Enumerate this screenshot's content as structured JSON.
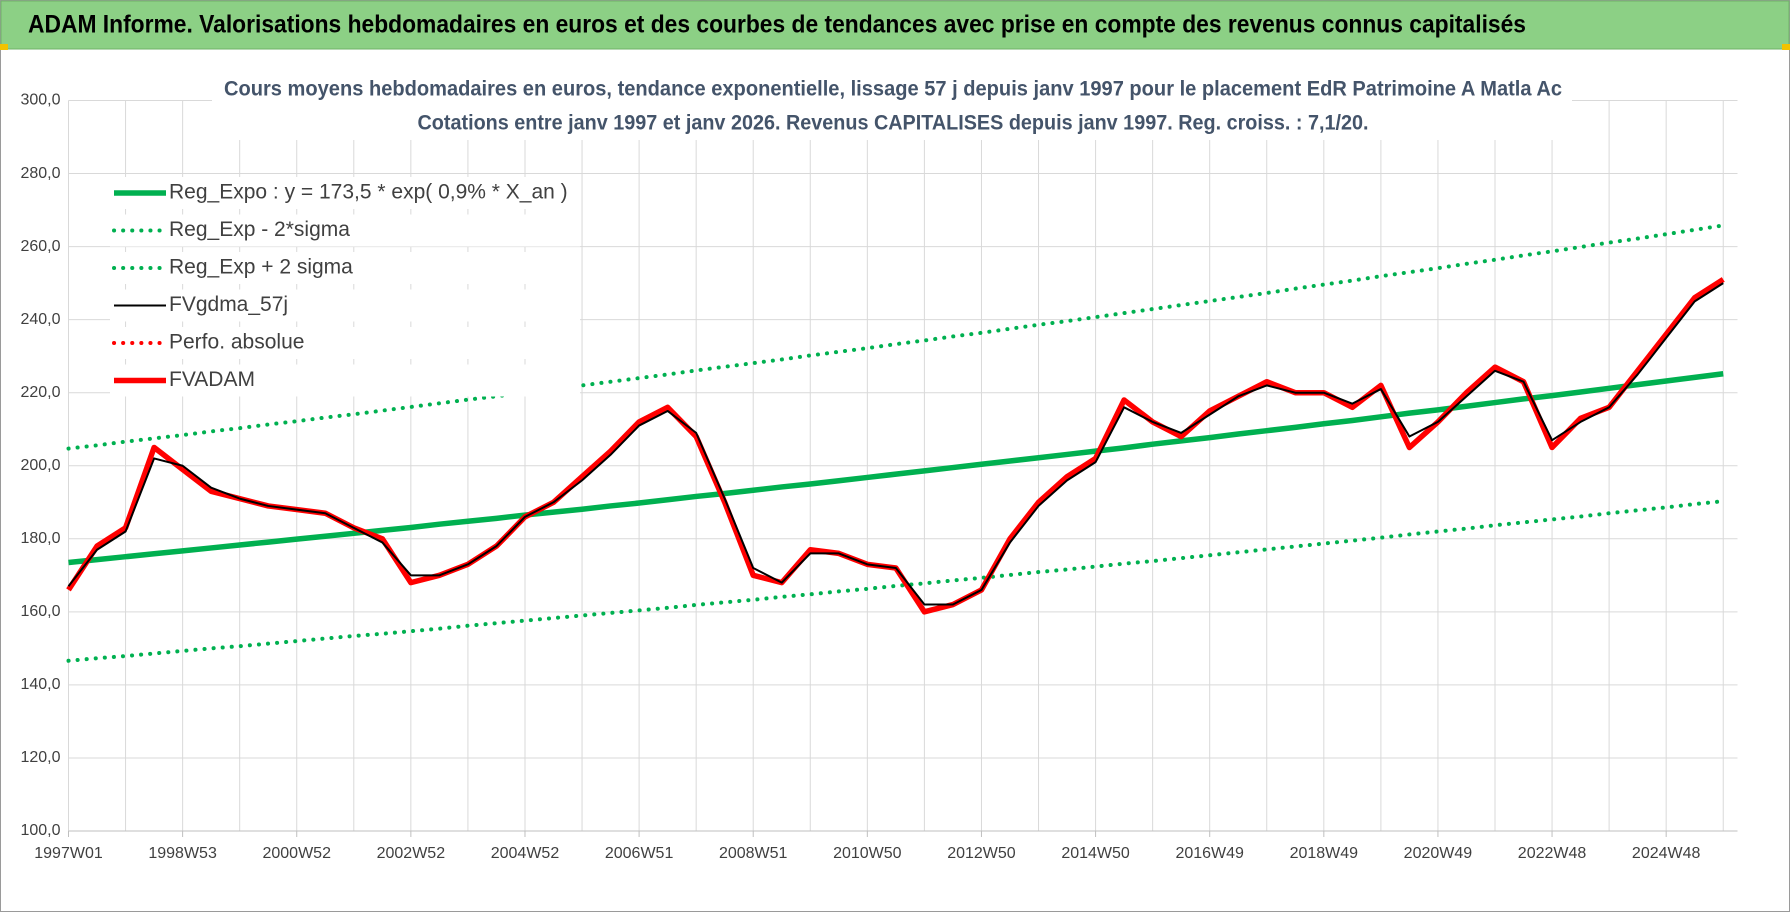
{
  "header": {
    "title": "ADAM Informe. Valorisations hebdomadaires en euros et des courbes de tendances avec prise en compte des revenus connus capitalisés"
  },
  "chart_data": {
    "type": "line",
    "title": "Cours moyens hebdomadaires en euros, tendance exponentielle, lissage 57 j depuis janv 1997 pour le placement EdR Patrimoine A Matla Ac",
    "subtitle": "Cotations entre janv 1997 et janv 2026. Revenus CAPITALISES depuis janv 1997. Reg. croiss. : 7,1/20.",
    "categories": [
      "1997W01",
      null,
      null,
      null,
      "1998W53",
      null,
      null,
      null,
      "2000W52",
      null,
      null,
      null,
      "2002W52",
      null,
      null,
      null,
      "2004W52",
      null,
      null,
      null,
      "2006W51",
      null,
      null,
      null,
      "2008W51",
      null,
      null,
      null,
      "2010W50",
      null,
      null,
      null,
      "2012W50",
      null,
      null,
      null,
      "2014W50",
      null,
      null,
      null,
      "2016W49",
      null,
      null,
      null,
      "2018W49",
      null,
      null,
      null,
      "2020W49",
      null,
      null,
      null,
      "2022W48",
      null,
      null,
      null,
      "2024W48",
      null,
      null
    ],
    "ylim": [
      100,
      300
    ],
    "yticks": [
      {
        "value": 100,
        "label": "100,0"
      },
      {
        "value": 120,
        "label": "120,0"
      },
      {
        "value": 140,
        "label": "140,0"
      },
      {
        "value": 160,
        "label": "160,0"
      },
      {
        "value": 180,
        "label": "180,0"
      },
      {
        "value": 200,
        "label": "200,0"
      },
      {
        "value": 220,
        "label": "220,0"
      },
      {
        "value": 240,
        "label": "240,0"
      },
      {
        "value": 260,
        "label": "260,0"
      },
      {
        "value": 280,
        "label": "280,0"
      },
      {
        "value": 300,
        "label": "300,0"
      }
    ],
    "grid": true,
    "legend": "upper left",
    "series": [
      {
        "name": "Reg_Expo : y = 173,5 * exp( 0,9% *  X_an )",
        "color": "#00b050",
        "style": "thick",
        "values": [
          173.5,
          174.3,
          175.1,
          175.9,
          176.7,
          177.5,
          178.3,
          179.1,
          179.9,
          180.7,
          181.5,
          182.3,
          183.1,
          184.0,
          184.8,
          185.6,
          186.5,
          187.3,
          188.1,
          189.0,
          189.8,
          190.7,
          191.6,
          192.4,
          193.3,
          194.2,
          195.0,
          195.9,
          196.8,
          197.7,
          198.6,
          199.5,
          200.4,
          201.3,
          202.2,
          203.1,
          204.0,
          204.9,
          205.9,
          206.8,
          207.7,
          208.7,
          209.6,
          210.5,
          211.5,
          212.4,
          213.4,
          214.4,
          215.3,
          216.3,
          217.3,
          218.3,
          219.2,
          220.2,
          221.2,
          222.2,
          223.2,
          224.2,
          225.2
        ]
      },
      {
        "name": "Reg_Exp - 2*sigma",
        "color": "#00b050",
        "style": "dotted",
        "values": [
          146.6,
          147.3,
          147.9,
          148.6,
          149.3,
          150.0,
          150.6,
          151.3,
          152.0,
          152.7,
          153.4,
          154.0,
          154.7,
          155.4,
          156.2,
          156.9,
          157.6,
          158.3,
          159.0,
          159.7,
          160.4,
          161.1,
          161.9,
          162.6,
          163.3,
          164.1,
          164.8,
          165.6,
          166.3,
          167.1,
          167.8,
          168.6,
          169.3,
          170.1,
          170.9,
          171.6,
          172.4,
          173.2,
          173.9,
          174.7,
          175.5,
          176.3,
          177.1,
          177.9,
          178.7,
          179.5,
          180.3,
          181.2,
          182.0,
          182.8,
          183.7,
          184.5,
          185.3,
          186.1,
          187.0,
          187.8,
          188.6,
          189.5,
          190.3
        ]
      },
      {
        "name": "Reg_Exp + 2 sigma",
        "color": "#00b050",
        "style": "dotted",
        "values": [
          204.7,
          205.6,
          206.6,
          207.5,
          208.4,
          209.4,
          210.3,
          211.3,
          212.2,
          213.2,
          214.1,
          215.1,
          216.1,
          217.1,
          218.1,
          219.0,
          220.0,
          221.0,
          222.0,
          223.0,
          224.0,
          225.0,
          226.1,
          227.1,
          228.1,
          229.1,
          230.2,
          231.2,
          232.2,
          233.3,
          234.3,
          235.4,
          236.4,
          237.5,
          238.6,
          239.6,
          240.7,
          241.8,
          242.9,
          244.0,
          245.1,
          246.2,
          247.3,
          248.5,
          249.6,
          250.7,
          251.9,
          253.0,
          254.1,
          255.3,
          256.4,
          257.6,
          258.7,
          259.9,
          261.1,
          262.2,
          263.4,
          264.6,
          265.8
        ]
      },
      {
        "name": "FVgdma_57j",
        "color": "#000000",
        "style": "thin",
        "values": [
          167,
          177,
          182,
          202,
          200,
          194,
          191,
          189,
          188,
          187,
          183,
          179,
          170,
          170,
          173,
          178,
          186,
          190,
          196,
          203,
          211,
          215,
          209,
          191,
          172,
          168,
          176,
          176,
          173,
          172,
          162,
          162,
          166,
          179,
          189,
          196,
          201,
          216,
          212,
          209,
          214,
          219,
          222,
          220,
          220,
          217,
          221,
          208,
          212,
          219,
          226,
          223,
          207,
          212,
          216,
          225,
          235,
          245,
          250
        ]
      },
      {
        "name": "Perfo. absolue",
        "color": "#ff0000",
        "style": "dotted",
        "values": [
          null,
          null,
          null,
          null,
          null,
          null,
          null,
          null,
          null,
          null,
          null,
          null,
          null,
          null,
          null,
          null,
          null,
          null,
          null,
          null,
          null,
          null,
          null,
          null,
          null,
          null,
          null,
          null,
          null,
          null,
          null,
          null,
          null,
          null,
          null,
          null,
          null,
          null,
          null,
          null,
          null,
          null,
          null,
          null,
          null,
          null,
          null,
          null,
          null,
          null,
          null,
          null,
          null,
          null,
          null,
          null,
          null,
          null,
          null
        ]
      },
      {
        "name": "FVADAM",
        "color": "#ff0000",
        "style": "thick",
        "values": [
          166,
          178,
          183,
          205,
          199,
          193,
          191,
          189,
          188,
          187,
          183,
          180,
          168,
          170,
          173,
          178,
          186,
          190,
          197,
          204,
          212,
          216,
          208,
          190,
          170,
          168,
          177,
          176,
          173,
          172,
          160,
          162,
          166,
          180,
          190,
          197,
          202,
          218,
          212,
          208,
          215,
          219,
          223,
          220,
          220,
          216,
          222,
          205,
          212,
          220,
          227,
          223,
          205,
          213,
          216,
          226,
          236,
          246,
          251
        ]
      }
    ]
  }
}
